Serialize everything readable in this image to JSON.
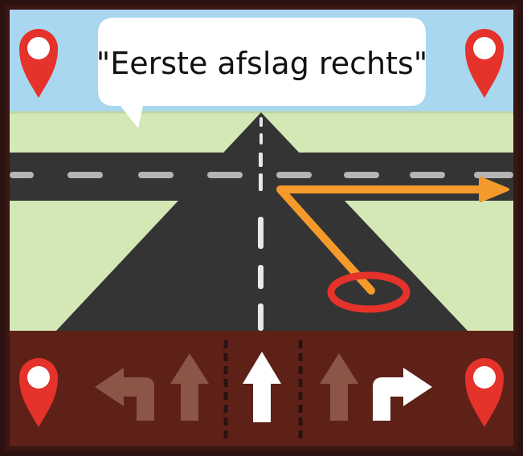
{
  "instruction": {
    "text": "\"Eerste afslag rechts\""
  },
  "colors": {
    "frame": "#3a1512",
    "sky": "#a9d7ef",
    "grass": "#d3e8b5",
    "road": "#343434",
    "lane_marking": "#b5b5b5",
    "bottom_bar": "#5d2118",
    "route_arrow": "#f39a2a",
    "position_ring": "#e5322b",
    "pin": "#e5322b",
    "pin_hole": "#ffffff",
    "inactive_arrow": "#8b5548",
    "active_arrow": "#ffffff"
  },
  "controls": {
    "selected": "straight",
    "arrows": [
      {
        "id": "turn-left",
        "state": "inactive",
        "icon": "turn-left-arrow-icon"
      },
      {
        "id": "straight-left",
        "state": "inactive",
        "icon": "straight-arrow-icon"
      },
      {
        "id": "straight",
        "state": "active",
        "icon": "straight-arrow-icon"
      },
      {
        "id": "straight-right",
        "state": "inactive",
        "icon": "straight-arrow-icon"
      },
      {
        "id": "turn-right",
        "state": "active",
        "icon": "turn-right-arrow-icon"
      }
    ]
  },
  "pins": [
    "top-left",
    "top-right",
    "bottom-left",
    "bottom-right"
  ]
}
